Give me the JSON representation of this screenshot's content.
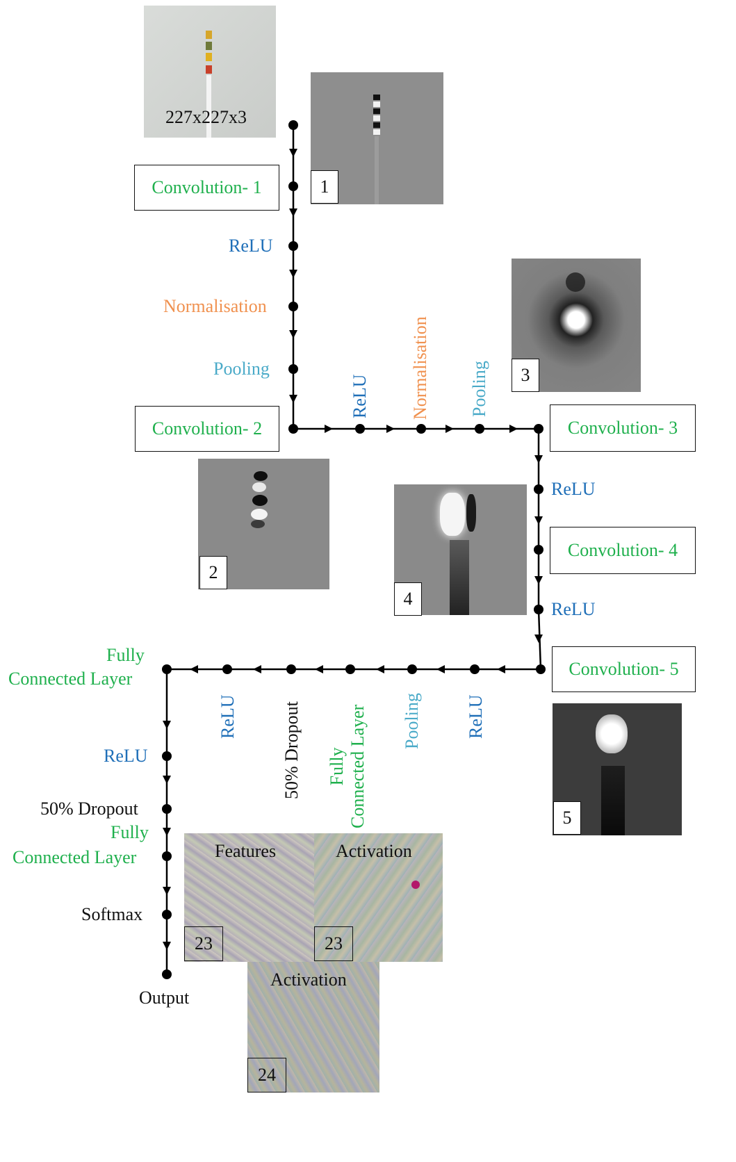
{
  "input": {
    "size_label": "227x227x3"
  },
  "vertical_main": {
    "conv1": "Convolution- 1",
    "relu": "ReLU",
    "normalisation": "Normalisation",
    "pooling": "Pooling",
    "conv2": "Convolution- 2"
  },
  "horizontal_top": {
    "relu": "ReLU",
    "normalisation": "Normalisation",
    "pooling": "Pooling",
    "conv3": "Convolution- 3"
  },
  "right_column": {
    "relu1": "ReLU",
    "conv4": "Convolution- 4",
    "relu2": "ReLU",
    "conv5": "Convolution- 5"
  },
  "bottom_row": {
    "relu_right": "ReLU",
    "pooling": "Pooling",
    "fc_line1": "Fully",
    "fc_line2": "Connected Layer",
    "dropout": "50% Dropout",
    "relu_left": "ReLU",
    "fc_corner_line1": "Fully",
    "fc_corner_line2": "Connected Layer"
  },
  "left_column": {
    "relu": "ReLU",
    "dropout": "50% Dropout",
    "fc_line1": "Fully",
    "fc_line2": "Connected Layer",
    "softmax": "Softmax",
    "output": "Output"
  },
  "feature_maps": {
    "fm1": "1",
    "fm2": "2",
    "fm3": "3",
    "fm4": "4",
    "fm5": "5",
    "features_title": "Features",
    "features_num": "23",
    "activation_title": "Activation",
    "activation_num": "23",
    "activation2_title": "Activation",
    "activation2_num": "24"
  },
  "colors": {
    "convolution": "#1fb04d",
    "relu": "#1f6fb8",
    "normalisation": "#f0914f",
    "pooling": "#4aaac8",
    "dropout": "#111111",
    "line": "#000000"
  }
}
